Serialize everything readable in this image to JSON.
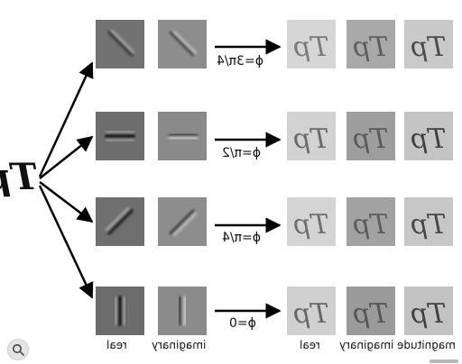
{
  "phase_labels": [
    "ϕ=3π/4",
    "ϕ=π/2",
    "ϕ=π/4",
    "ϕ=0"
  ],
  "column_labels": {
    "filter_real": "real",
    "filter_imaginary": "imaginary",
    "output_real": "real",
    "output_imaginary": "imaginary",
    "output_magnitude": "magnitude"
  },
  "input_glyph": "Tp",
  "colors": {
    "arrow": "#000000",
    "panel_dark": "#6d6d6d",
    "panel_mid": "#8c8c8c",
    "panel_light": "#cfcfcf"
  },
  "icons": [
    "image-search-lens-icon"
  ]
}
